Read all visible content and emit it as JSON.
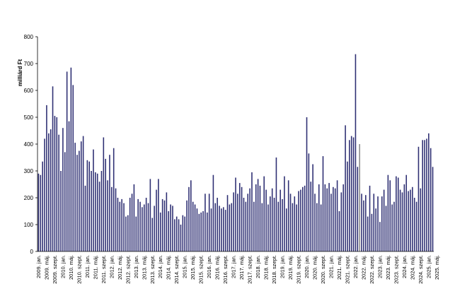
{
  "chart_data": {
    "type": "bar",
    "ylabel": "milliárd Ft",
    "ylim": [
      0,
      800
    ],
    "yticks": [
      0,
      100,
      200,
      300,
      400,
      500,
      600,
      700,
      800
    ],
    "bar_color": "#2e2f73",
    "highlight_color": "#8c8c8c",
    "highlight_index": 158,
    "x_tick_labels": [
      "2009. jan.",
      "2009. máj.",
      "2009. szept.",
      "2010. jan.",
      "2010. máj.",
      "2010. szept.",
      "2011. jan.",
      "2011. máj.",
      "2011. szept.",
      "2012. jan.",
      "2012. máj.",
      "2012. szept.",
      "2013. jan.",
      "2013. máj.",
      "2013. szept.",
      "2014. jan.",
      "2014. máj.",
      "2014. szept.",
      "2015. jan.",
      "2015. máj.",
      "2015. szept.",
      "2016. jan.",
      "2016. máj.",
      "2016. szept.",
      "2017. jan.",
      "2017. máj.",
      "2017. szept.",
      "2018. jan.",
      "2018. máj.",
      "2018. szept.",
      "2019. jan.",
      "2019. máj.",
      "2019. szept.",
      "2020. jan.",
      "2020. máj.",
      "2020. szept.",
      "2021. jan.",
      "2021. máj.",
      "2021. szept.",
      "2022. jan.",
      "2022. máj.",
      "2022. szept.",
      "2023. jan.",
      "2023. máj.",
      "2023. szept.",
      "2024. jan.",
      "2024. máj.",
      "2024. szept.",
      "2025. jan.",
      "2025. máj."
    ],
    "values": [
      290,
      285,
      335,
      420,
      545,
      440,
      455,
      615,
      505,
      500,
      435,
      300,
      460,
      370,
      670,
      485,
      685,
      620,
      405,
      360,
      375,
      410,
      430,
      245,
      340,
      335,
      300,
      380,
      295,
      290,
      260,
      300,
      425,
      345,
      265,
      360,
      240,
      385,
      235,
      200,
      185,
      195,
      180,
      130,
      135,
      200,
      215,
      250,
      130,
      195,
      185,
      165,
      175,
      200,
      180,
      270,
      125,
      170,
      230,
      270,
      145,
      195,
      190,
      220,
      150,
      175,
      170,
      120,
      130,
      120,
      100,
      135,
      130,
      190,
      240,
      265,
      185,
      175,
      160,
      140,
      145,
      150,
      215,
      145,
      215,
      160,
      285,
      180,
      200,
      170,
      160,
      165,
      155,
      210,
      175,
      180,
      220,
      275,
      215,
      255,
      240,
      200,
      185,
      215,
      235,
      295,
      185,
      250,
      270,
      245,
      180,
      280,
      230,
      175,
      205,
      235,
      200,
      350,
      185,
      230,
      195,
      280,
      160,
      265,
      215,
      180,
      205,
      175,
      225,
      230,
      240,
      245,
      500,
      365,
      260,
      325,
      215,
      180,
      250,
      175,
      355,
      250,
      235,
      255,
      215,
      240,
      235,
      265,
      150,
      220,
      250,
      470,
      335,
      415,
      430,
      425,
      735,
      315,
      400,
      215,
      190,
      210,
      130,
      245,
      140,
      215,
      160,
      205,
      110,
      205,
      230,
      170,
      285,
      265,
      175,
      185,
      280,
      275,
      230,
      220,
      250,
      285,
      225,
      230,
      240,
      200,
      185,
      390,
      235,
      415,
      415,
      420,
      440,
      385,
      315
    ]
  }
}
